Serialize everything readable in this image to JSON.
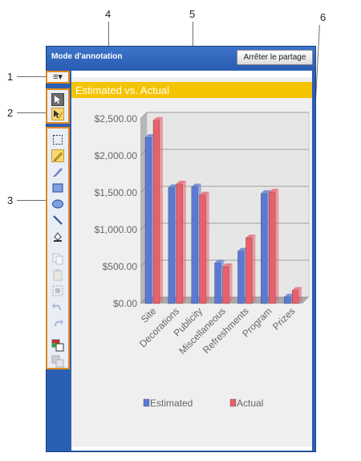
{
  "callouts": [
    "1",
    "2",
    "3",
    "4",
    "5",
    "6"
  ],
  "window": {
    "title": "Mode d'annotation",
    "stop_sharing_label": "Arrêter le partage",
    "menu_button_label": "≡▾"
  },
  "tools": {
    "pointer_icons": [
      "pointer-icon",
      "annotate-pointer-icon"
    ],
    "drawing_icons": [
      "selection-rectangle-icon",
      "pen-icon",
      "highlighter-icon",
      "rectangle-icon",
      "ellipse-icon",
      "line-icon",
      "fill-icon",
      "copy-icon",
      "paste-icon",
      "select-all-icon",
      "undo-icon",
      "redo-icon",
      "color-picker-icon",
      "background-color-icon"
    ]
  },
  "chart_data": {
    "type": "bar",
    "title": "Estimated vs. Actual",
    "categories": [
      "Site",
      "Decorations",
      "Publicity",
      "Miscellaneous",
      "Refreshments",
      "Program",
      "Prizes"
    ],
    "series": [
      {
        "name": "Estimated",
        "values": [
          2250,
          1570,
          1580,
          550,
          710,
          1490,
          90
        ],
        "color": "#5b79d4"
      },
      {
        "name": "Actual",
        "values": [
          2480,
          1620,
          1470,
          500,
          890,
          1510,
          180
        ],
        "color": "#e8606b"
      }
    ],
    "ylim": [
      0,
      2500
    ],
    "yticks": [
      "$0.00",
      "$500.00",
      "$1,000.00",
      "$1,500.00",
      "$2,000.00",
      "$2,500.00"
    ],
    "grid": true,
    "legend": "bottom"
  },
  "colors": {
    "window_blue": "#2b5fb4",
    "highlight_orange": "#e08a1e",
    "title_bar_yellow": "#f5c400"
  }
}
